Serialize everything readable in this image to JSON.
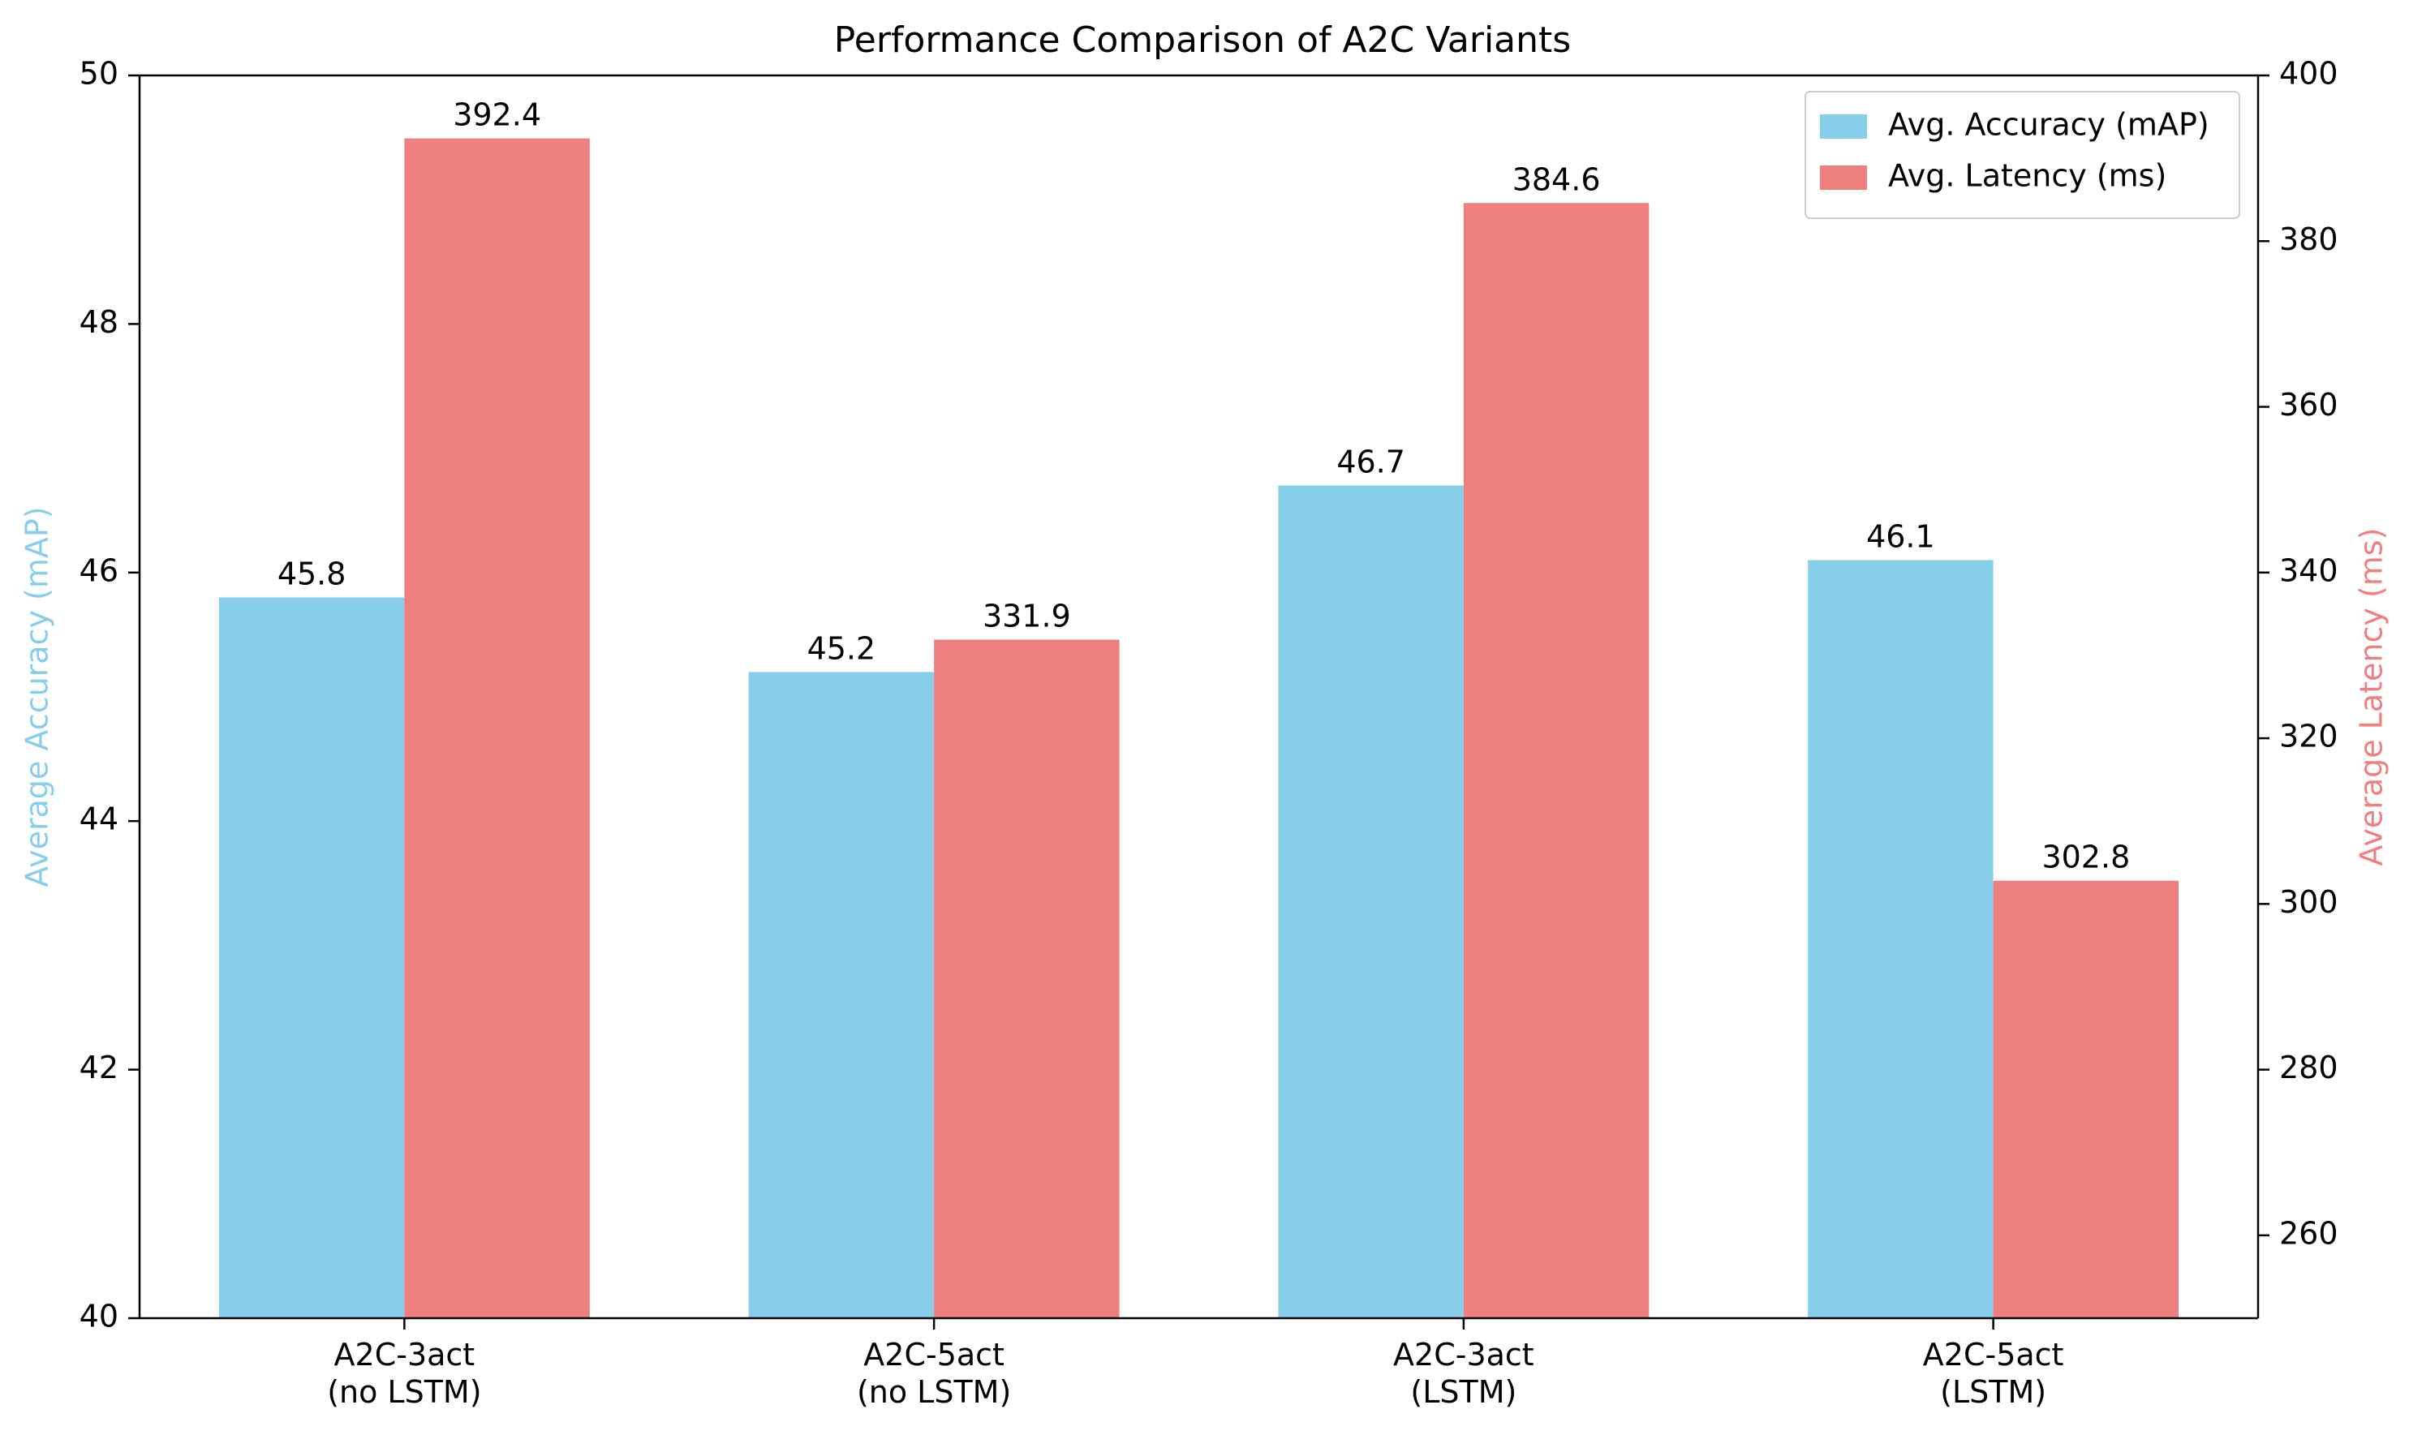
{
  "chart_data": {
    "type": "bar",
    "title": "Performance Comparison of A2C Variants",
    "categories": [
      "A2C-3act\n(no LSTM)",
      "A2C-5act\n(no LSTM)",
      "A2C-3act\n(LSTM)",
      "A2C-5act\n(LSTM)"
    ],
    "series": [
      {
        "name": "Avg. Accuracy (mAP)",
        "axis": "left",
        "color": "#87CEEB",
        "values": [
          45.8,
          45.2,
          46.7,
          46.1
        ],
        "labels": [
          "45.8",
          "45.2",
          "46.7",
          "46.1"
        ]
      },
      {
        "name": "Avg. Latency (ms)",
        "axis": "right",
        "color": "#F08080",
        "values": [
          392.4,
          331.9,
          384.6,
          302.8
        ],
        "labels": [
          "392.4",
          "331.9",
          "384.6",
          "302.8"
        ]
      }
    ],
    "y_left": {
      "label": "Average Accuracy (mAP)",
      "color": "#87CEEB",
      "lim": [
        40,
        50
      ],
      "ticks": [
        40,
        42,
        44,
        46,
        48,
        50
      ]
    },
    "y_right": {
      "label": "Average Latency (ms)",
      "color": "#F08080",
      "lim": [
        250,
        400
      ],
      "ticks": [
        260,
        280,
        300,
        320,
        340,
        360,
        380,
        400
      ]
    },
    "xlabel": "",
    "grid": false,
    "legend": "top-right"
  }
}
